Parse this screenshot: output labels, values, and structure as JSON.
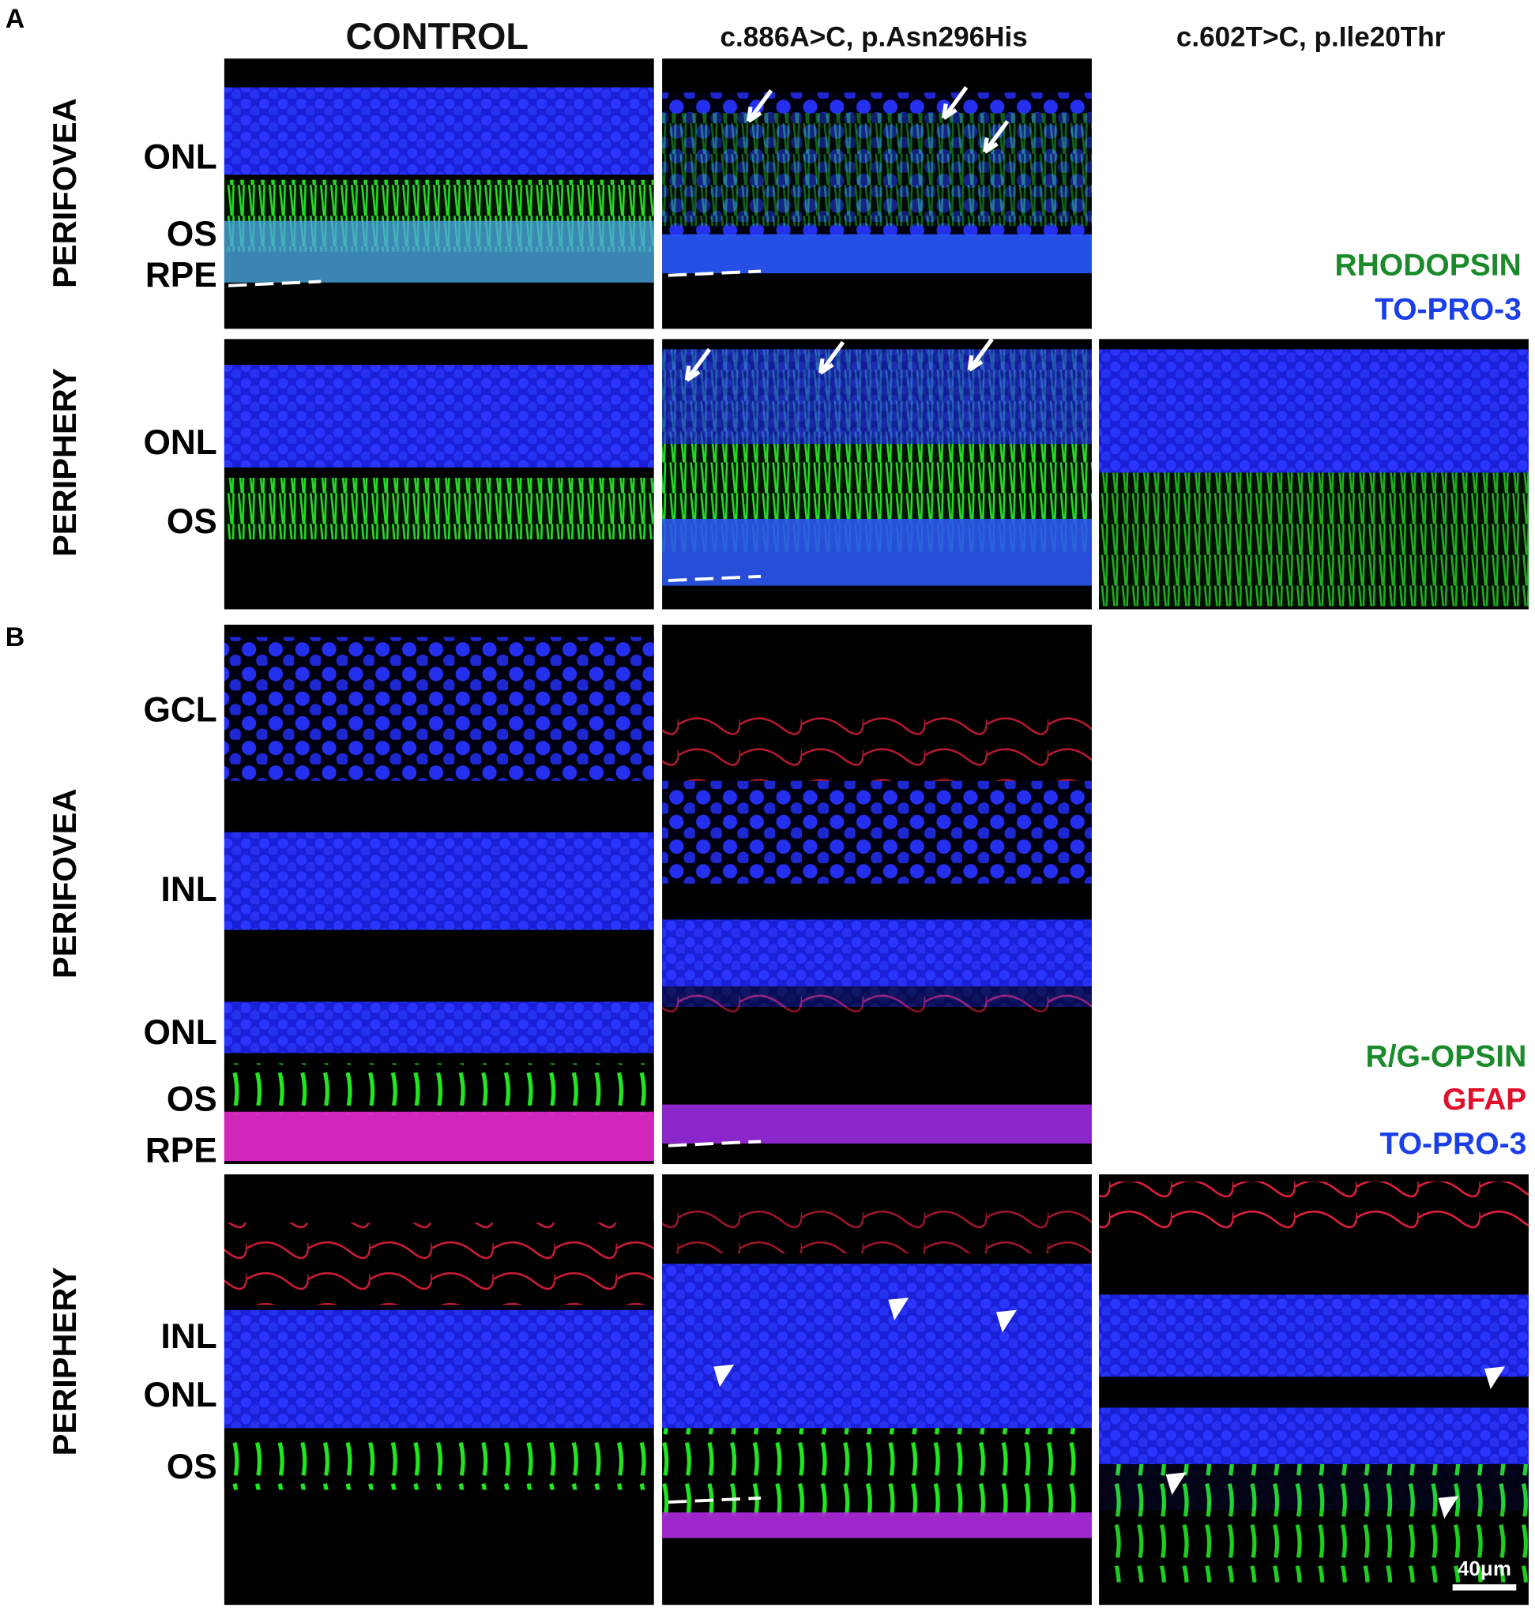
{
  "panel_letters": [
    "A",
    "B"
  ],
  "columns": [
    "CONTROL",
    "c.886A>C, p.Asn296His",
    "c.602T>C, p.Ile20Thr"
  ],
  "panel_a": {
    "rows": [
      {
        "label": "PERIFOVEA",
        "layers": [
          "ONL",
          "OS",
          "RPE"
        ]
      },
      {
        "label": "PERIPHERY",
        "layers": [
          "ONL",
          "OS"
        ]
      }
    ],
    "legend": [
      "RHODOPSIN",
      "TO-PRO-3"
    ]
  },
  "panel_b": {
    "rows": [
      {
        "label": "PERIFOVEA",
        "layers": [
          "GCL",
          "INL",
          "ONL",
          "OS",
          "RPE"
        ]
      },
      {
        "label": "PERIPHERY",
        "layers": [
          "INL",
          "ONL",
          "OS"
        ]
      }
    ],
    "legend": [
      "R/G-OPSIN",
      "GFAP",
      "TO-PRO-3"
    ]
  },
  "scale_bar": "40μm"
}
